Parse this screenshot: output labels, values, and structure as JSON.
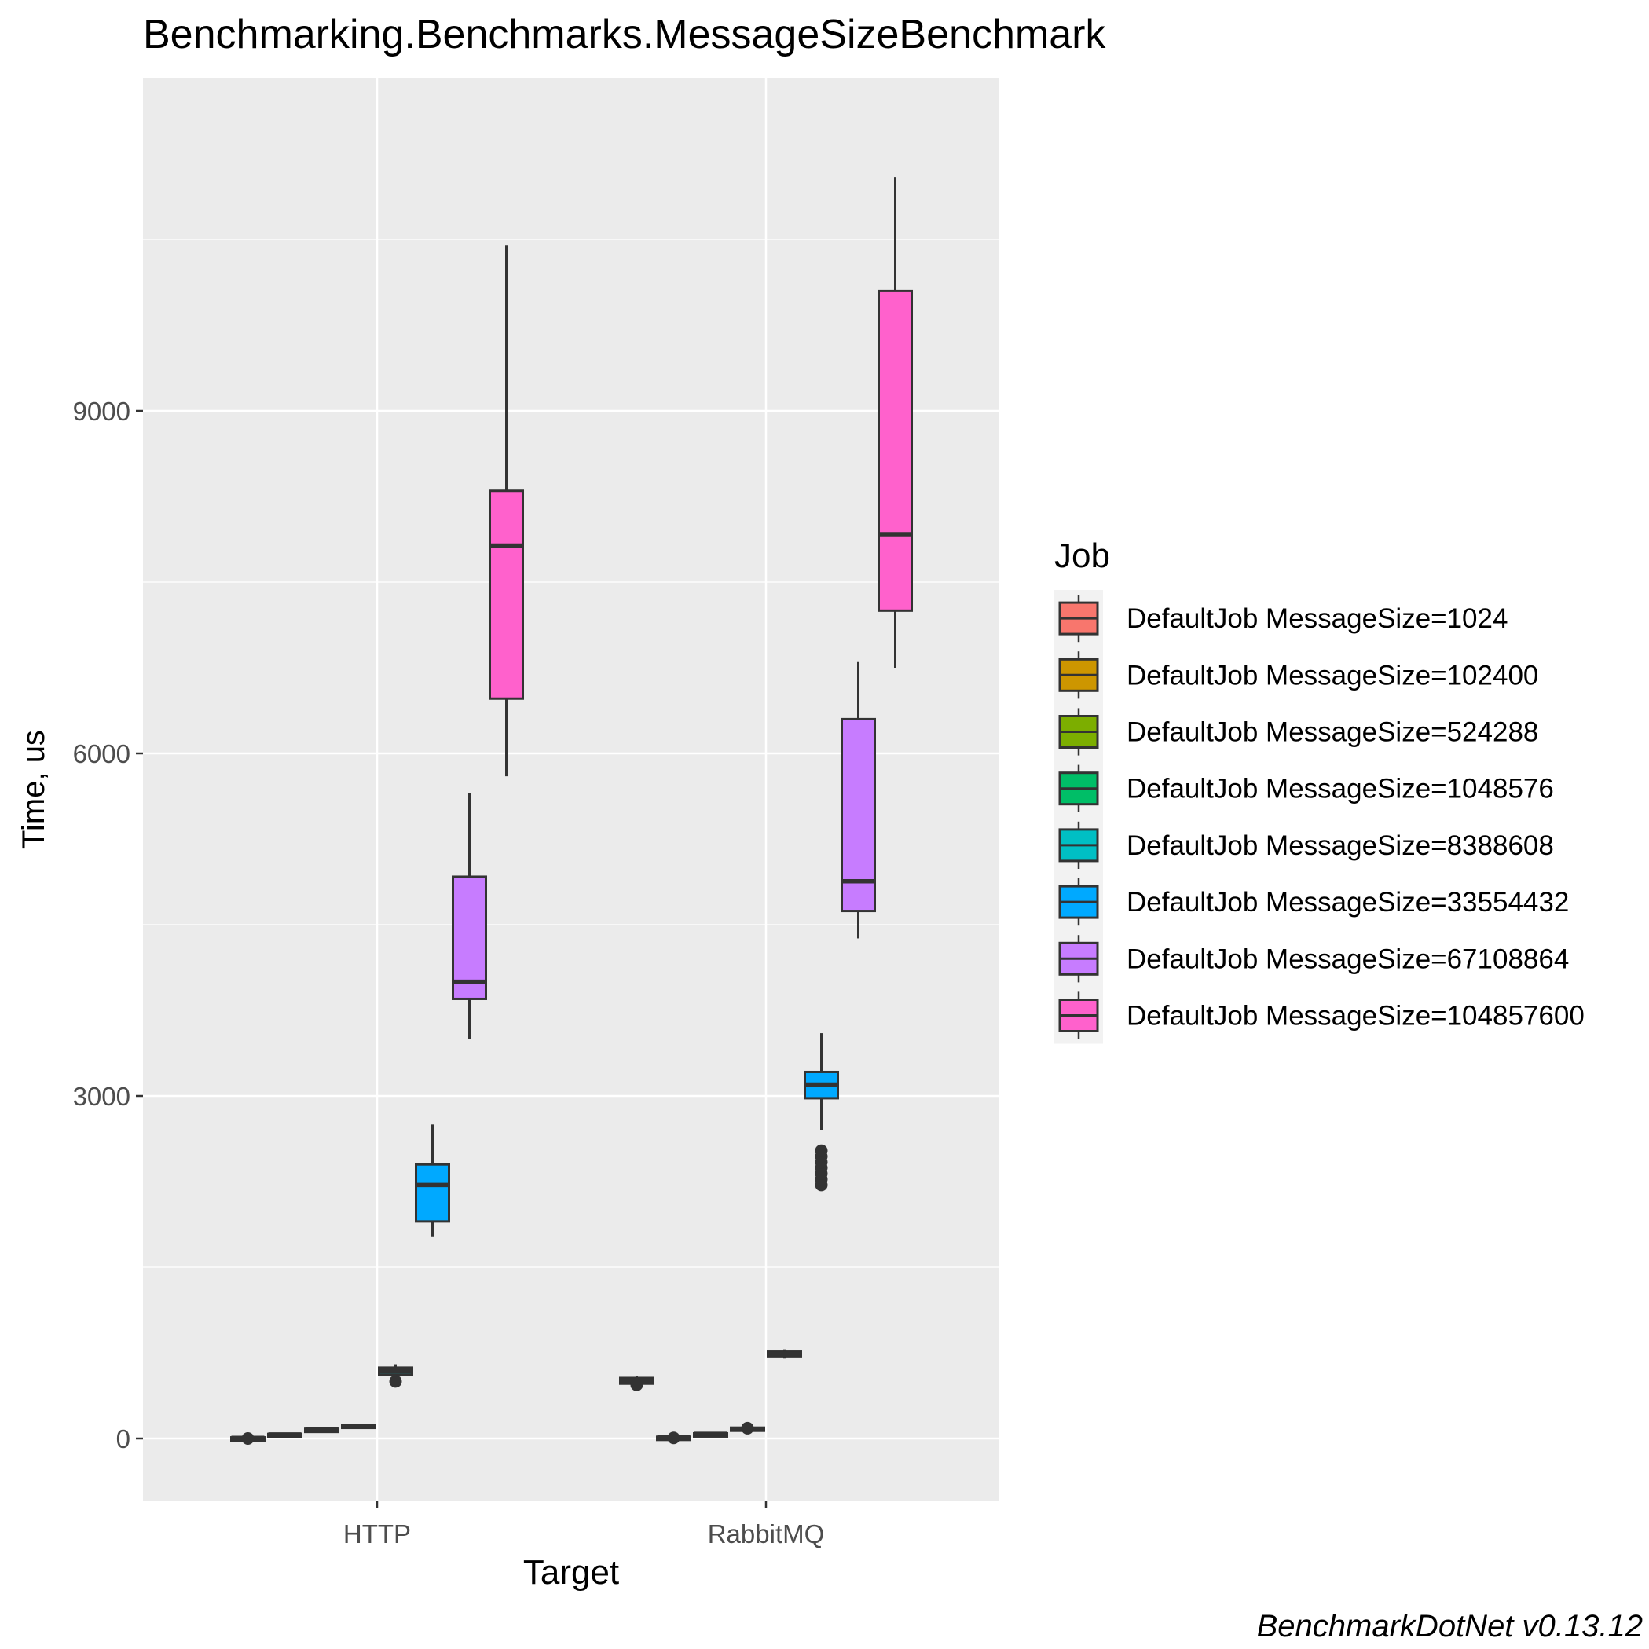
{
  "title": "Benchmarking.Benchmarks.MessageSizeBenchmark",
  "caption": "BenchmarkDotNet v0.13.12",
  "chart_data": {
    "type": "boxplot",
    "title": "Benchmarking.Benchmarks.MessageSizeBenchmark",
    "xlabel": "Target",
    "ylabel": "Time, us",
    "categories": [
      "HTTP",
      "RabbitMQ"
    ],
    "ylim": [
      -550,
      11700
    ],
    "yticks": [
      0,
      3000,
      6000,
      9000
    ],
    "grid": true,
    "legend_position": "right",
    "legend_title": "Job",
    "series": [
      {
        "name": "DefaultJob MessageSize=1024",
        "color": "#F8766D",
        "boxes": [
          {
            "category": "HTTP",
            "min": 0,
            "q1": 0,
            "median": 5,
            "q3": 10,
            "max": 15,
            "outliers": [
              0
            ]
          },
          {
            "category": "RabbitMQ",
            "min": 440,
            "q1": 480,
            "median": 505,
            "q3": 530,
            "max": 545,
            "outliers": [
              470
            ]
          }
        ]
      },
      {
        "name": "DefaultJob MessageSize=102400",
        "color": "#CD9600",
        "boxes": [
          {
            "category": "HTTP",
            "min": 25,
            "q1": 30,
            "median": 35,
            "q3": 40,
            "max": 45,
            "outliers": []
          },
          {
            "category": "RabbitMQ",
            "min": 0,
            "q1": 0,
            "median": 10,
            "q3": 15,
            "max": 20,
            "outliers": [
              5
            ]
          }
        ]
      },
      {
        "name": "DefaultJob MessageSize=524288",
        "color": "#7CAE00",
        "boxes": [
          {
            "category": "HTTP",
            "min": 65,
            "q1": 70,
            "median": 78,
            "q3": 85,
            "max": 90,
            "outliers": []
          },
          {
            "category": "RabbitMQ",
            "min": 30,
            "q1": 35,
            "median": 40,
            "q3": 45,
            "max": 50,
            "outliers": []
          }
        ]
      },
      {
        "name": "DefaultJob MessageSize=1048576",
        "color": "#00BE67",
        "boxes": [
          {
            "category": "HTTP",
            "min": 95,
            "q1": 100,
            "median": 110,
            "q3": 120,
            "max": 125,
            "outliers": []
          },
          {
            "category": "RabbitMQ",
            "min": 60,
            "q1": 70,
            "median": 80,
            "q3": 95,
            "max": 105,
            "outliers": [
              90
            ]
          }
        ]
      },
      {
        "name": "DefaultJob MessageSize=8388608",
        "color": "#00BFC4",
        "boxes": [
          {
            "category": "HTTP",
            "min": 530,
            "q1": 560,
            "median": 590,
            "q3": 620,
            "max": 650,
            "outliers": [
              500
            ]
          },
          {
            "category": "RabbitMQ",
            "min": 700,
            "q1": 720,
            "median": 740,
            "q3": 760,
            "max": 780,
            "outliers": []
          }
        ]
      },
      {
        "name": "DefaultJob MessageSize=33554432",
        "color": "#00A9FF",
        "boxes": [
          {
            "category": "HTTP",
            "min": 1770,
            "q1": 1900,
            "median": 2220,
            "q3": 2400,
            "max": 2750,
            "outliers": []
          },
          {
            "category": "RabbitMQ",
            "min": 2700,
            "q1": 2980,
            "median": 3100,
            "q3": 3210,
            "max": 3550,
            "outliers": [
              2220,
              2270,
              2320,
              2370,
              2420,
              2470,
              2520
            ]
          }
        ]
      },
      {
        "name": "DefaultJob MessageSize=67108864",
        "color": "#C77CFF",
        "boxes": [
          {
            "category": "HTTP",
            "min": 3500,
            "q1": 3850,
            "median": 4000,
            "q3": 4920,
            "max": 5650,
            "outliers": []
          },
          {
            "category": "RabbitMQ",
            "min": 4380,
            "q1": 4620,
            "median": 4880,
            "q3": 6300,
            "max": 6800,
            "outliers": []
          }
        ]
      },
      {
        "name": "DefaultJob MessageSize=104857600",
        "color": "#FF61CC",
        "boxes": [
          {
            "category": "HTTP",
            "min": 5800,
            "q1": 6480,
            "median": 7820,
            "q3": 8300,
            "max": 10450,
            "outliers": []
          },
          {
            "category": "RabbitMQ",
            "min": 6750,
            "q1": 7250,
            "median": 7920,
            "q3": 10050,
            "max": 11050,
            "outliers": []
          }
        ]
      }
    ]
  }
}
